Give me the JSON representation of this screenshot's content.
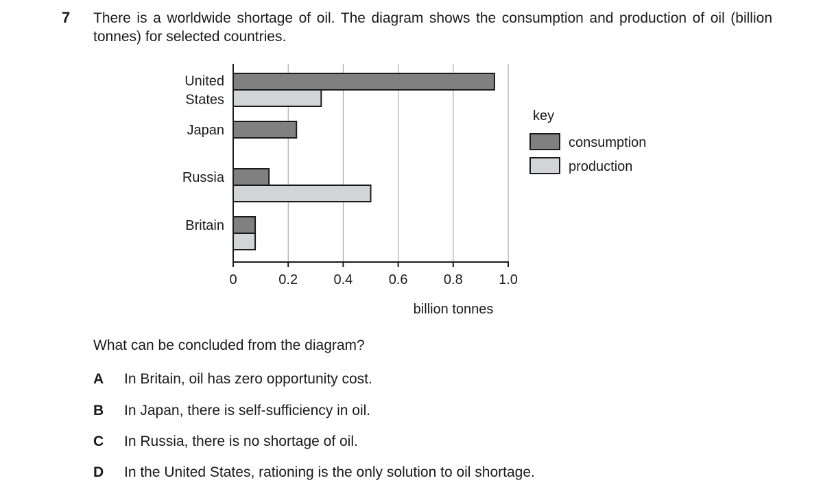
{
  "question": {
    "number": "7",
    "text": "There is a worldwide shortage of oil. The diagram shows the consumption and production of oil (billion tonnes) for selected countries."
  },
  "chart_data": {
    "type": "bar",
    "orientation": "horizontal",
    "categories": [
      "United States",
      "Japan",
      "Russia",
      "Britain"
    ],
    "category_lines": [
      [
        "United",
        "States"
      ],
      [
        "Japan"
      ],
      [
        "Russia"
      ],
      [
        "Britain"
      ]
    ],
    "series": [
      {
        "name": "consumption",
        "values": [
          0.95,
          0.23,
          0.13,
          0.08
        ],
        "color": "#808080"
      },
      {
        "name": "production",
        "values": [
          0.32,
          0,
          0.5,
          0.08
        ],
        "color": "#d3d4d5"
      }
    ],
    "xlabel": "billion tonnes",
    "xlim": [
      0,
      1.0
    ],
    "xticks": [
      "0",
      "0.2",
      "0.4",
      "0.6",
      "0.8",
      "1.0"
    ],
    "grid": true,
    "legend": {
      "title": "key",
      "position": "right"
    }
  },
  "prompt": "What can be concluded from the diagram?",
  "options": [
    {
      "letter": "A",
      "text": "In Britain, oil has zero opportunity cost."
    },
    {
      "letter": "B",
      "text": "In Japan, there is self-sufficiency in oil."
    },
    {
      "letter": "C",
      "text": "In Russia, there is no shortage of oil."
    },
    {
      "letter": "D",
      "text": "In the United States, rationing is the only solution to oil shortage."
    }
  ]
}
